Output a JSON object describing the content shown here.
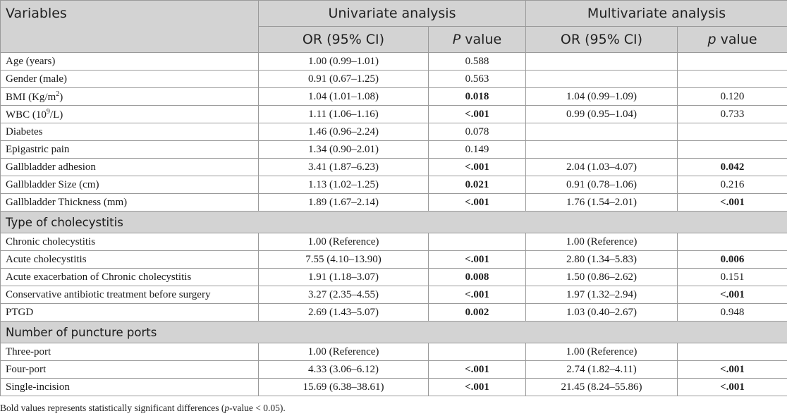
{
  "header": {
    "variables": "Variables",
    "univariate": "Univariate analysis",
    "multivariate": "Multivariate analysis",
    "or_ci": "OR (95% CI)",
    "uni_p_letter": "P",
    "multi_p_letter": "p",
    "value_word": "value"
  },
  "rows_top": [
    {
      "var": "Age (years)",
      "uni_or": "1.00 (0.99–1.01)",
      "uni_p": "0.588",
      "uni_sig": false,
      "mul_or": "",
      "mul_p": "",
      "mul_sig": false
    },
    {
      "var": "Gender (male)",
      "uni_or": "0.91 (0.67–1.25)",
      "uni_p": "0.563",
      "uni_sig": false,
      "mul_or": "",
      "mul_p": "",
      "mul_sig": false
    },
    {
      "var_pre": "BMI (Kg/m",
      "var_sup": "2",
      "var_post": ")",
      "uni_or": "1.04 (1.01–1.08)",
      "uni_p": "0.018",
      "uni_sig": true,
      "mul_or": "1.04 (0.99–1.09)",
      "mul_p": "0.120",
      "mul_sig": false
    },
    {
      "var_pre": "WBC (10",
      "var_sup": "9",
      "var_post": "/L)",
      "uni_or": "1.11 (1.06–1.16)",
      "uni_p": "<.001",
      "uni_sig": true,
      "mul_or": "0.99 (0.95–1.04)",
      "mul_p": "0.733",
      "mul_sig": false
    },
    {
      "var": "Diabetes",
      "uni_or": "1.46 (0.96–2.24)",
      "uni_p": "0.078",
      "uni_sig": false,
      "mul_or": "",
      "mul_p": "",
      "mul_sig": false
    },
    {
      "var": "Epigastric pain",
      "uni_or": "1.34 (0.90–2.01)",
      "uni_p": "0.149",
      "uni_sig": false,
      "mul_or": "",
      "mul_p": "",
      "mul_sig": false
    },
    {
      "var": "Gallbladder adhesion",
      "uni_or": "3.41 (1.87–6.23)",
      "uni_p": "<.001",
      "uni_sig": true,
      "mul_or": "2.04 (1.03–4.07)",
      "mul_p": "0.042",
      "mul_sig": true
    },
    {
      "var": "Gallbladder Size (cm)",
      "uni_or": "1.13 (1.02–1.25)",
      "uni_p": "0.021",
      "uni_sig": true,
      "mul_or": "0.91 (0.78–1.06)",
      "mul_p": "0.216",
      "mul_sig": false
    },
    {
      "var": "Gallbladder Thickness (mm)",
      "uni_or": "1.89 (1.67–2.14)",
      "uni_p": "<.001",
      "uni_sig": true,
      "mul_or": "1.76 (1.54–2.01)",
      "mul_p": "<.001",
      "mul_sig": true
    }
  ],
  "section1": "Type of cholecystitis",
  "rows_chole": [
    {
      "var": "Chronic cholecystitis",
      "uni_or": "1.00 (Reference)",
      "uni_p": "",
      "uni_sig": false,
      "mul_or": "1.00 (Reference)",
      "mul_p": "",
      "mul_sig": false
    },
    {
      "var": "Acute cholecystitis",
      "uni_or": "7.55 (4.10–13.90)",
      "uni_p": "<.001",
      "uni_sig": true,
      "mul_or": "2.80 (1.34–5.83)",
      "mul_p": "0.006",
      "mul_sig": true
    },
    {
      "var": "Acute exacerbation of Chronic cholecystitis",
      "uni_or": "1.91 (1.18–3.07)",
      "uni_p": "0.008",
      "uni_sig": true,
      "mul_or": "1.50 (0.86–2.62)",
      "mul_p": "0.151",
      "mul_sig": false
    },
    {
      "var": "Conservative antibiotic treatment before surgery",
      "uni_or": "3.27 (2.35–4.55)",
      "uni_p": "<.001",
      "uni_sig": true,
      "mul_or": "1.97 (1.32–2.94)",
      "mul_p": "<.001",
      "mul_sig": true
    },
    {
      "var": "PTGD",
      "uni_or": "2.69 (1.43–5.07)",
      "uni_p": "0.002",
      "uni_sig": true,
      "mul_or": "1.03 (0.40–2.67)",
      "mul_p": "0.948",
      "mul_sig": false
    }
  ],
  "section2": "Number of puncture ports",
  "rows_ports": [
    {
      "var": "Three-port",
      "uni_or": "1.00 (Reference)",
      "uni_p": "",
      "uni_sig": false,
      "mul_or": "1.00 (Reference)",
      "mul_p": "",
      "mul_sig": false
    },
    {
      "var": "Four-port",
      "uni_or": "4.33 (3.06–6.12)",
      "uni_p": "<.001",
      "uni_sig": true,
      "mul_or": "2.74 (1.82–4.11)",
      "mul_p": "<.001",
      "mul_sig": true
    },
    {
      "var": "Single-incision",
      "uni_or": "15.69 (6.38–38.61)",
      "uni_p": "<.001",
      "uni_sig": true,
      "mul_or": "21.45 (8.24–55.86)",
      "mul_p": "<.001",
      "mul_sig": true
    }
  ],
  "footnote": {
    "pre": "Bold values represents statistically significant differences (",
    "italic": "p",
    "post": "-value < 0.05)."
  }
}
